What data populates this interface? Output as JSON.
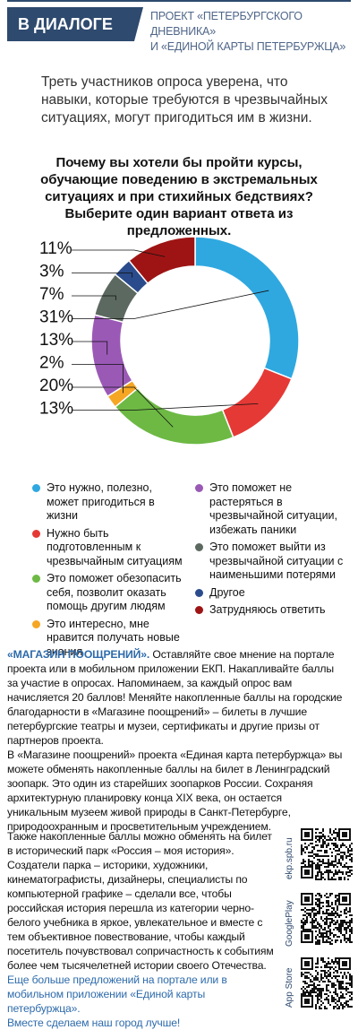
{
  "header": {
    "badge": "В ДИАЛОГЕ",
    "project_line1": "ПРОЕКТ «ПЕТЕРБУРГСКОГО ДНЕВНИКА»",
    "project_line2": "И «ЕДИНОЙ КАРТЫ ПЕТЕРБУРЖЦА»"
  },
  "intro": "Треть участников опроса уверена, что навыки, которые требуются в чрезвычайных ситуациях, могут пригодиться им в жизни.",
  "chart_data": {
    "type": "pie",
    "title": "Почему вы хотели бы пройти курсы, обучающие поведению в экстремальных ситуациях и при стихийных бедствиях? Выберите один вариант ответа из предложенных.",
    "slices": [
      {
        "label": "Это нужно, полезно, может пригодиться в жизни",
        "value": 31,
        "display": "31%",
        "color": "#2fa8e0"
      },
      {
        "label": "Нужно быть подготовленным к чрезвычайным ситуациям",
        "value": 13,
        "display": "13%",
        "color": "#e53935"
      },
      {
        "label": "Это поможет обезопасить себя, позволит оказать помощь другим людям",
        "value": 20,
        "display": "20%",
        "color": "#6db944"
      },
      {
        "label": "Это интересно, мне нравится получать новые знания",
        "value": 2,
        "display": "2%",
        "color": "#f5a623"
      },
      {
        "label": "Это поможет не растеряться в чрезвычайной ситуации, избежать паники",
        "value": 13,
        "display": "13%",
        "color": "#9b59b6"
      },
      {
        "label": "Это поможет выйти из чрезвычайной ситуации с наименьшими потерями",
        "value": 7,
        "display": "7%",
        "color": "#5c6960"
      },
      {
        "label": "Другое",
        "value": 3,
        "display": "3%",
        "color": "#2b4c8c"
      },
      {
        "label": "Затрудняюсь ответить",
        "value": 11,
        "display": "11%",
        "color": "#9e1414"
      }
    ],
    "label_order": [
      "11%",
      "3%",
      "7%",
      "31%",
      "13%",
      "2%",
      "20%",
      "13%"
    ]
  },
  "legend": {
    "col1": [
      {
        "text": "Это нужно, полезно, может пригодиться в жизни",
        "color": "#2fa8e0"
      },
      {
        "text": "Нужно быть подготовленным к чрезвычайным ситуациям",
        "color": "#e53935"
      },
      {
        "text": "Это поможет обезопасить себя, позволит оказать помощь другим людям",
        "color": "#6db944"
      },
      {
        "text": "Это интересно, мне нравится получать новые знания",
        "color": "#f5a623"
      }
    ],
    "col2": [
      {
        "text": "Это поможет не растеряться в чрезвычайной ситуации, избежать паники",
        "color": "#9b59b6"
      },
      {
        "text": "Это поможет выйти из чрезвычайной ситуации с наименьшими потерями",
        "color": "#5c6960"
      },
      {
        "text": "Другое",
        "color": "#2b4c8c"
      },
      {
        "text": "Затрудняюсь ответить",
        "color": "#9e1414"
      }
    ]
  },
  "promo": {
    "title": "«МАГАЗИН ПООЩРЕНИЙ».",
    "p1": " Оставляйте свое мнение на портале проекта или в мобильном приложении ЕКП. Накапливайте баллы за участие в опросах. Напоминаем, за каждый опрос вам начисляется 20 баллов! Меняйте накопленные баллы на городские благодарности в «Магазине поощрений» – билеты в лучшие петербургские театры и музеи, сертификаты и другие призы от партнеров проекта.",
    "p2": "В «Магазине поощрений» проекта «Единая карта петербуржца» вы можете обменять накопленные баллы на билет в Ленинградский зоопарк. Это один из старейших зоопарков России. Сохраняя архитектурную планировку конца XIX века, он остается уникальным музеем живой природы в Санкт-Петербурге, природоохранным и просветительным учреждением.",
    "p3": "Также накопленные баллы можно обменять на билет в исторический парк «Россия – моя история». Создатели парка – историки, художники, кинематографисты, дизайнеры, специалисты по компьютерной графике – сделали все, чтобы российская история перешла из категории черно-белого учебника в яркое, увлекательное и вместе с тем объективное повествование, чтобы каждый посетитель почувствовал сопричастность к событиям более чем тысячелетней истории своего Отечества.",
    "p4": "Еще больше предложений на портале или в мобильном приложении «Единой карты петербуржца».",
    "p5": "Вместе сделаем наш город лучше!"
  },
  "qr": [
    {
      "label": "ekp.spb.ru"
    },
    {
      "label": "GooglePlay"
    },
    {
      "label": "App Store"
    }
  ],
  "colors": {
    "brand": "#2e4a6e",
    "accent_link": "#2e6bab"
  }
}
